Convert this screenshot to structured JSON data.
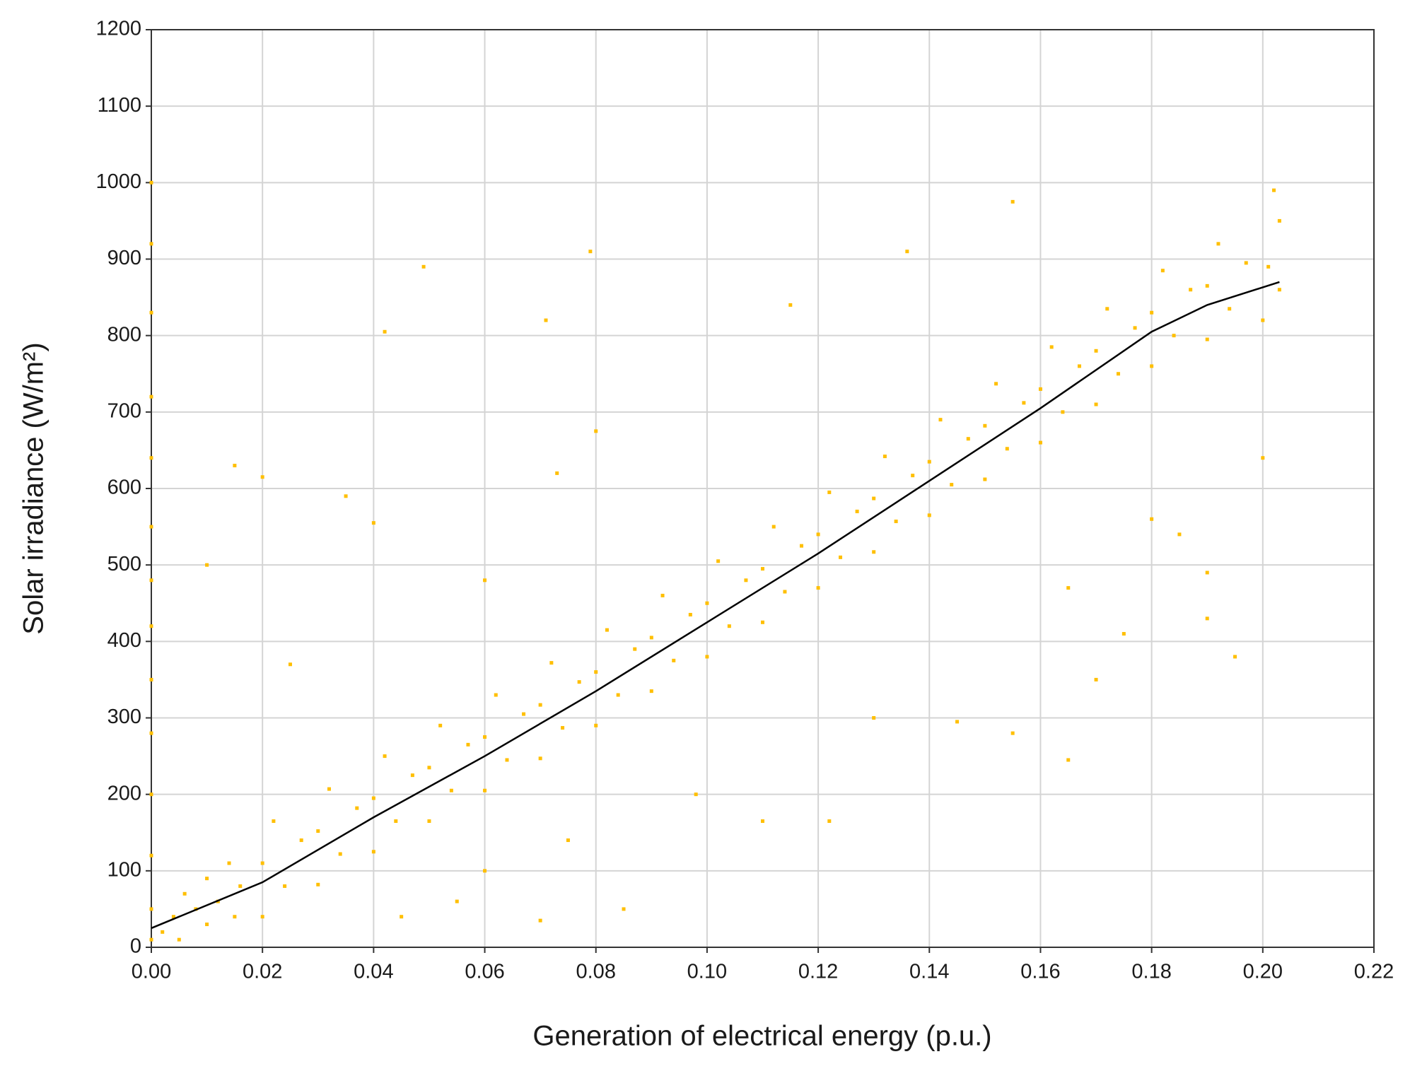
{
  "chart_data": {
    "type": "scatter",
    "xlabel": "Generation of electrical energy (p.u.)",
    "ylabel": "Solar irradiance (W/m²)",
    "xlim": [
      0,
      0.22
    ],
    "ylim": [
      0,
      1200
    ],
    "xticks": [
      {
        "value": 0,
        "label": "0.00"
      },
      {
        "value": 0.02,
        "label": "0.02"
      },
      {
        "value": 0.04,
        "label": "0.04"
      },
      {
        "value": 0.06,
        "label": "0.06"
      },
      {
        "value": 0.08,
        "label": "0.08"
      },
      {
        "value": 0.1,
        "label": "0.10"
      },
      {
        "value": 0.12,
        "label": "0.12"
      },
      {
        "value": 0.14,
        "label": "0.14"
      },
      {
        "value": 0.16,
        "label": "0.16"
      },
      {
        "value": 0.18,
        "label": "0.18"
      },
      {
        "value": 0.2,
        "label": "0.20"
      },
      {
        "value": 0.22,
        "label": "0.22"
      }
    ],
    "yticks": [
      0,
      100,
      200,
      300,
      400,
      500,
      600,
      700,
      800,
      900,
      1000,
      1100,
      1200
    ],
    "grid": true,
    "series": [
      {
        "color": "#ffbf00",
        "x": [
          0,
          0,
          0,
          0,
          0,
          0,
          0,
          0,
          0,
          0,
          0,
          0,
          0,
          0,
          0.002,
          0.004,
          0.005,
          0.006,
          0.008,
          0.01,
          0.01,
          0.012,
          0.014,
          0.015,
          0.016,
          0.02,
          0.024,
          0.02,
          0.027,
          0.022,
          0.03,
          0.034,
          0.03,
          0.037,
          0.032,
          0.04,
          0.044,
          0.04,
          0.047,
          0.042,
          0.05,
          0.054,
          0.05,
          0.057,
          0.052,
          0.06,
          0.064,
          0.06,
          0.067,
          0.062,
          0.07,
          0.074,
          0.07,
          0.077,
          0.072,
          0.08,
          0.084,
          0.08,
          0.087,
          0.082,
          0.09,
          0.094,
          0.09,
          0.097,
          0.092,
          0.1,
          0.104,
          0.1,
          0.107,
          0.102,
          0.11,
          0.114,
          0.11,
          0.117,
          0.112,
          0.12,
          0.124,
          0.12,
          0.127,
          0.122,
          0.13,
          0.134,
          0.13,
          0.137,
          0.132,
          0.14,
          0.144,
          0.14,
          0.147,
          0.142,
          0.15,
          0.154,
          0.15,
          0.157,
          0.152,
          0.16,
          0.164,
          0.16,
          0.167,
          0.162,
          0.17,
          0.174,
          0.17,
          0.177,
          0.172,
          0.18,
          0.184,
          0.18,
          0.187,
          0.182,
          0.19,
          0.194,
          0.19,
          0.197,
          0.192,
          0.2,
          0.203,
          0.201,
          0.203,
          0.202,
          0.049,
          0.071,
          0.042,
          0.079,
          0.136,
          0.115,
          0.155,
          0.015,
          0.02,
          0.035,
          0.073,
          0.08,
          0.06,
          0.04,
          0.085,
          0.07,
          0.075,
          0.11,
          0.122,
          0.165,
          0.175,
          0.19,
          0.195,
          0.19,
          0.13,
          0.145,
          0.155,
          0.098,
          0.06,
          0.045,
          0.01,
          0.025,
          0.055,
          0.18,
          0.2,
          0.185,
          0.17,
          0.165
        ],
        "values": [
          10,
          50,
          120,
          200,
          280,
          350,
          420,
          480,
          550,
          640,
          720,
          830,
          920,
          1000,
          20,
          40,
          10,
          70,
          50,
          30,
          90,
          60,
          110,
          40,
          80,
          40,
          80,
          110,
          140,
          165,
          82,
          122,
          152,
          182,
          207,
          125,
          165,
          195,
          225,
          250,
          165,
          205,
          235,
          265,
          290,
          205,
          245,
          275,
          305,
          330,
          247,
          287,
          317,
          347,
          372,
          290,
          330,
          360,
          390,
          415,
          335,
          375,
          405,
          435,
          460,
          380,
          420,
          450,
          480,
          505,
          425,
          465,
          495,
          525,
          550,
          470,
          510,
          540,
          570,
          595,
          517,
          557,
          587,
          617,
          642,
          565,
          605,
          635,
          665,
          690,
          612,
          652,
          682,
          712,
          737,
          660,
          700,
          730,
          760,
          785,
          710,
          750,
          780,
          810,
          835,
          760,
          800,
          830,
          860,
          885,
          795,
          835,
          865,
          895,
          920,
          820,
          860,
          890,
          950,
          990,
          890,
          820,
          805,
          910,
          910,
          840,
          975,
          630,
          615,
          590,
          620,
          675,
          480,
          555,
          50,
          35,
          140,
          165,
          165,
          245,
          410,
          490,
          380,
          430,
          300,
          295,
          280,
          200,
          100,
          40,
          500,
          370,
          60,
          560,
          640,
          540,
          350,
          470
        ]
      }
    ],
    "fit_line": {
      "color": "#000000",
      "x": [
        0,
        0.02,
        0.04,
        0.06,
        0.08,
        0.1,
        0.12,
        0.14,
        0.16,
        0.18,
        0.19,
        0.203
      ],
      "values": [
        25,
        85,
        170,
        250,
        335,
        425,
        515,
        610,
        705,
        805,
        840,
        870
      ]
    }
  }
}
